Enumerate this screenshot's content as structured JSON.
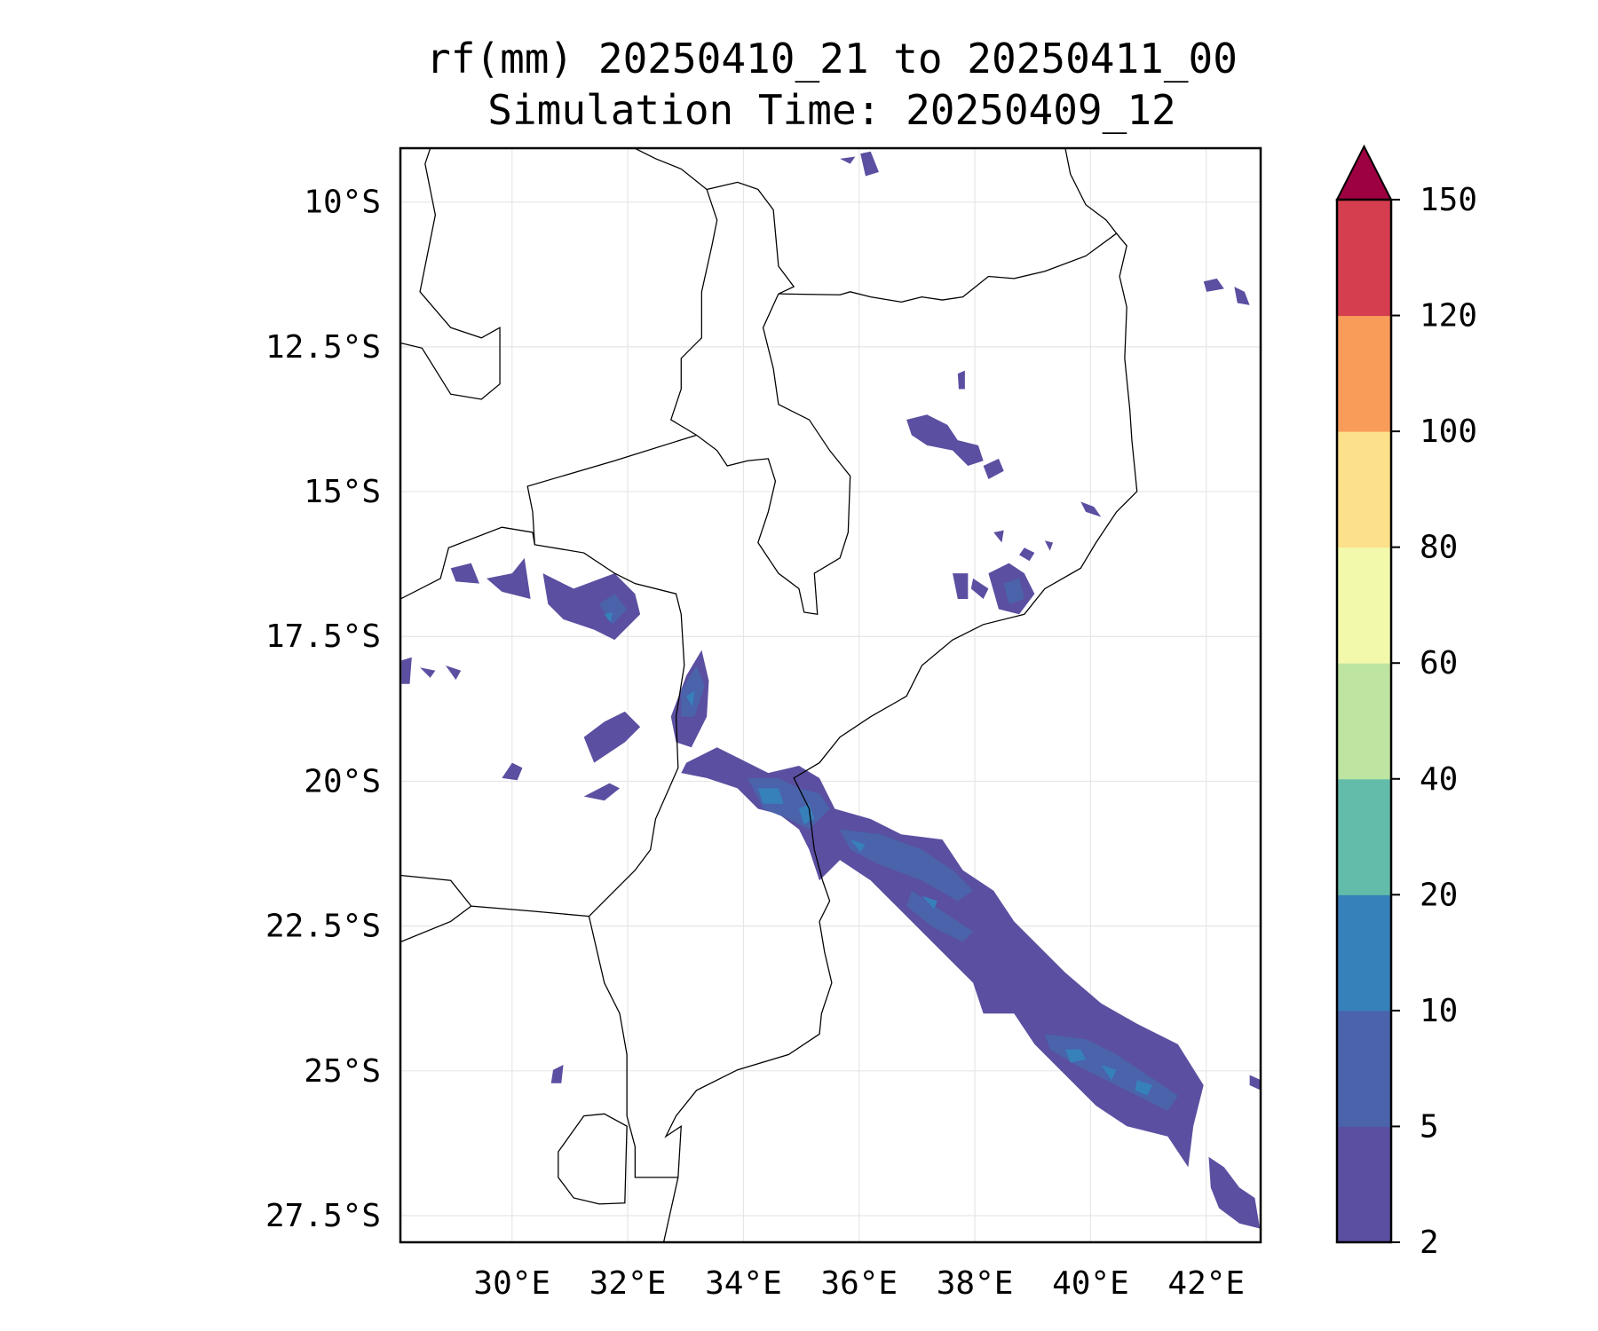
{
  "chart_data": {
    "type": "heatmap",
    "title": "rf(mm) 20250410_21 to 20250411_00",
    "subtitle": "Simulation Time: 20250409_12",
    "xlabel": "",
    "ylabel": "",
    "xlim": [
      28.07,
      42.94
    ],
    "ylim": [
      -27.96,
      -9.07
    ],
    "x_ticks": [
      30,
      32,
      34,
      36,
      38,
      40,
      42
    ],
    "x_tick_labels": [
      "30°E",
      "32°E",
      "34°E",
      "36°E",
      "38°E",
      "40°E",
      "42°E"
    ],
    "y_ticks": [
      -10,
      -12.5,
      -15,
      -17.5,
      -20,
      -22.5,
      -25,
      -27.5
    ],
    "y_tick_labels": [
      "10°S",
      "12.5°S",
      "15°S",
      "17.5°S",
      "20°S",
      "22.5°S",
      "25°S",
      "27.5°S"
    ],
    "grid": true,
    "colorbar": {
      "levels": [
        2,
        5,
        10,
        20,
        40,
        60,
        80,
        100,
        120,
        150
      ],
      "tick_labels": [
        "2",
        "5",
        "10",
        "20",
        "40",
        "60",
        "80",
        "100",
        "120",
        "150"
      ],
      "colors": [
        "#5b4fa1",
        "#4a63ab",
        "#3781ba",
        "#63bca9",
        "#bde4a0",
        "#f3f9ab",
        "#fce08b",
        "#f99c59",
        "#d43e4f"
      ],
      "extend_color": "#9e0142",
      "extend": "max",
      "placement": "right"
    }
  }
}
